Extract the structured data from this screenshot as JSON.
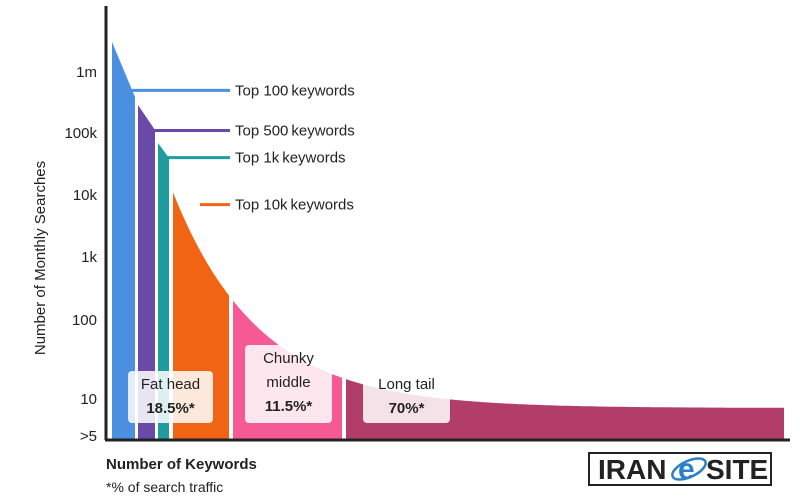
{
  "chart_data": {
    "type": "area",
    "ylabel": "Number of Monthly Searches",
    "xlabel": "Number of Keywords",
    "footnote": "*% of search traffic",
    "y_scale": "log",
    "yticks": [
      {
        "label": ">5",
        "value": 5
      },
      {
        "label": "10",
        "value": 10
      },
      {
        "label": "100",
        "value": 100
      },
      {
        "label": "1k",
        "value": 1000
      },
      {
        "label": "10k",
        "value": 10000
      },
      {
        "label": "100k",
        "value": 100000
      },
      {
        "label": "1m",
        "value": 1000000
      }
    ],
    "segments": [
      {
        "id": "top100",
        "color": "#4a8fe0"
      },
      {
        "id": "top500",
        "color": "#6a4aa8"
      },
      {
        "id": "top1k",
        "color": "#1f9ca0"
      },
      {
        "id": "top10k",
        "color": "#f06414"
      },
      {
        "id": "chunky",
        "color": "#f55a94"
      },
      {
        "id": "longtail",
        "color": "#b23d68"
      }
    ],
    "callouts": [
      {
        "segment": "top100",
        "text": "Top 100 keywords",
        "at_value": 500000
      },
      {
        "segment": "top500",
        "text": "Top 500 keywords",
        "at_value": 110000
      },
      {
        "segment": "top1k",
        "text": "Top 1k keywords",
        "at_value": 40000
      },
      {
        "segment": "top10k",
        "text": "Top 10k keywords",
        "at_value": 7000
      }
    ],
    "groups": [
      {
        "lines": [
          "Fat head"
        ],
        "percent": "18.5%*",
        "share": 18.5
      },
      {
        "lines": [
          "Chunky",
          "middle"
        ],
        "percent": "11.5%*",
        "share": 11.5
      },
      {
        "lines": [
          "Long tail"
        ],
        "percent": "70%*",
        "share": 70
      }
    ]
  },
  "logo": {
    "text_left": "IRAN",
    "letter": "e",
    "text_right": "SITE"
  }
}
